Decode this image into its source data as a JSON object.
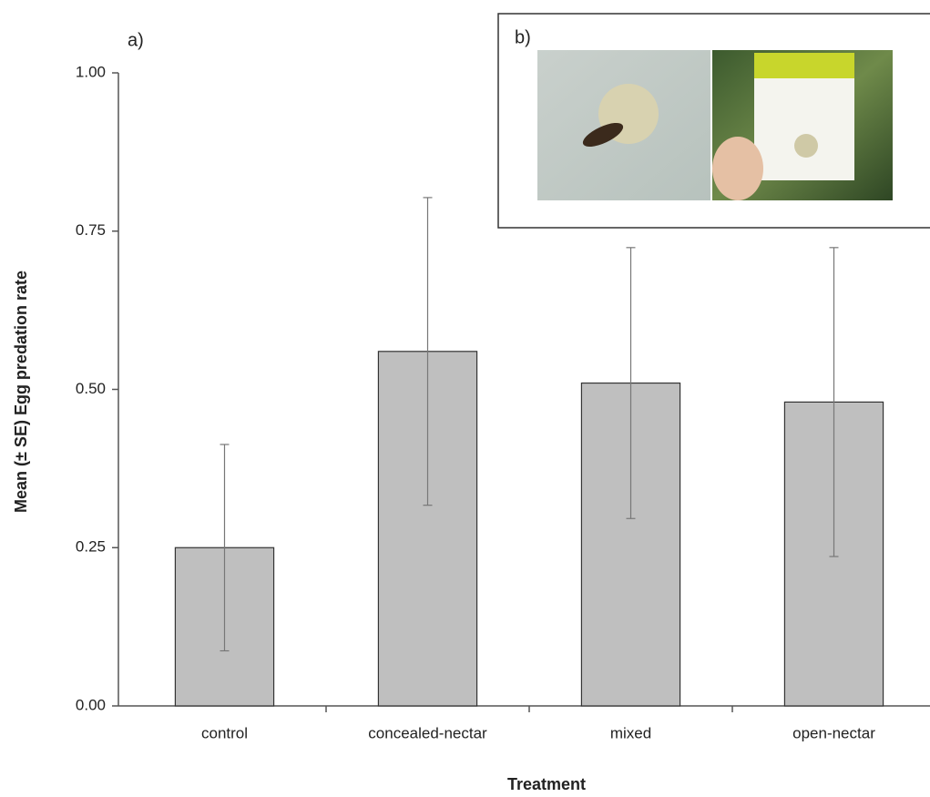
{
  "chart_data": {
    "type": "bar",
    "panel_label": "a)",
    "inset_label": "b)",
    "xlabel": "Treatment",
    "ylabel": "Mean (± SE) Egg predation rate",
    "categories": [
      "control",
      "concealed-nectar",
      "mixed",
      "open-nectar"
    ],
    "values": [
      0.25,
      0.56,
      0.51,
      0.48
    ],
    "errors": [
      0.163,
      0.243,
      0.214,
      0.244
    ],
    "color": "#bfbfbf",
    "ylim": [
      0,
      1
    ],
    "yticks": [
      {
        "value": 0,
        "label": "0.00"
      },
      0.25,
      {
        "value": 0.5,
        "label": "0.50"
      },
      0.75,
      {
        "value": 1,
        "label": "1.00"
      }
    ],
    "grid": false
  }
}
